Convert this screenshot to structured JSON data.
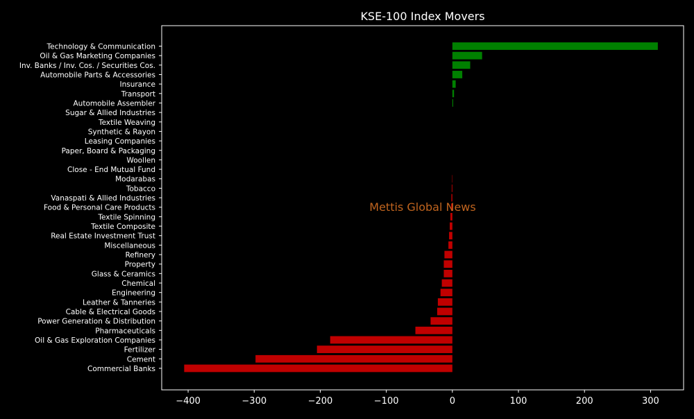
{
  "chart_data": {
    "type": "bar",
    "orientation": "horizontal",
    "title": "KSE-100 Index Movers",
    "xlabel": "",
    "ylabel": "",
    "watermark": "Mettis Global News",
    "xlim": [
      -440,
      350
    ],
    "xticks": [
      -400,
      -300,
      -200,
      -100,
      0,
      100,
      200,
      300
    ],
    "xtick_labels": [
      "−400",
      "−300",
      "−200",
      "−100",
      "0",
      "100",
      "200",
      "300"
    ],
    "grid": false,
    "legend": "none",
    "colors": {
      "positive": "#008000",
      "negative": "#c00000",
      "background": "#000000",
      "text": "#ffffff",
      "watermark": "#c0641e"
    },
    "categories": [
      "Technology & Communication",
      "Oil & Gas Marketing Companies",
      "Inv. Banks / Inv. Cos. / Securities Cos.",
      "Automobile Parts & Accessories",
      "Insurance",
      "Transport",
      "Automobile Assembler",
      "Sugar & Allied Industries",
      "Textile Weaving",
      "Synthetic & Rayon",
      "Leasing Companies",
      "Paper, Board & Packaging",
      "Woollen",
      "Close - End Mutual Fund",
      "Modarabas",
      "Tobacco",
      "Vanaspati & Allied Industries",
      "Food & Personal Care Products",
      "Textile Spinning",
      "Textile Composite",
      "Real Estate Investment Trust",
      "Miscellaneous",
      "Refinery",
      "Property",
      "Glass & Ceramics",
      "Chemical",
      "Engineering",
      "Leather & Tanneries",
      "Cable & Electrical Goods",
      "Power Generation & Distribution",
      "Pharmaceuticals",
      "Oil & Gas Exploration Companies",
      "Fertilizer",
      "Cement",
      "Commercial Banks"
    ],
    "values": [
      311,
      45,
      27,
      15,
      5,
      2.5,
      1.2,
      0,
      0,
      0,
      0,
      0,
      0,
      0,
      -0.5,
      -1,
      -1.5,
      -2,
      -3,
      -4,
      -5,
      -6,
      -12,
      -13,
      -13,
      -16,
      -18,
      -22,
      -23,
      -33,
      -56,
      -185,
      -205,
      -298,
      -406
    ]
  }
}
